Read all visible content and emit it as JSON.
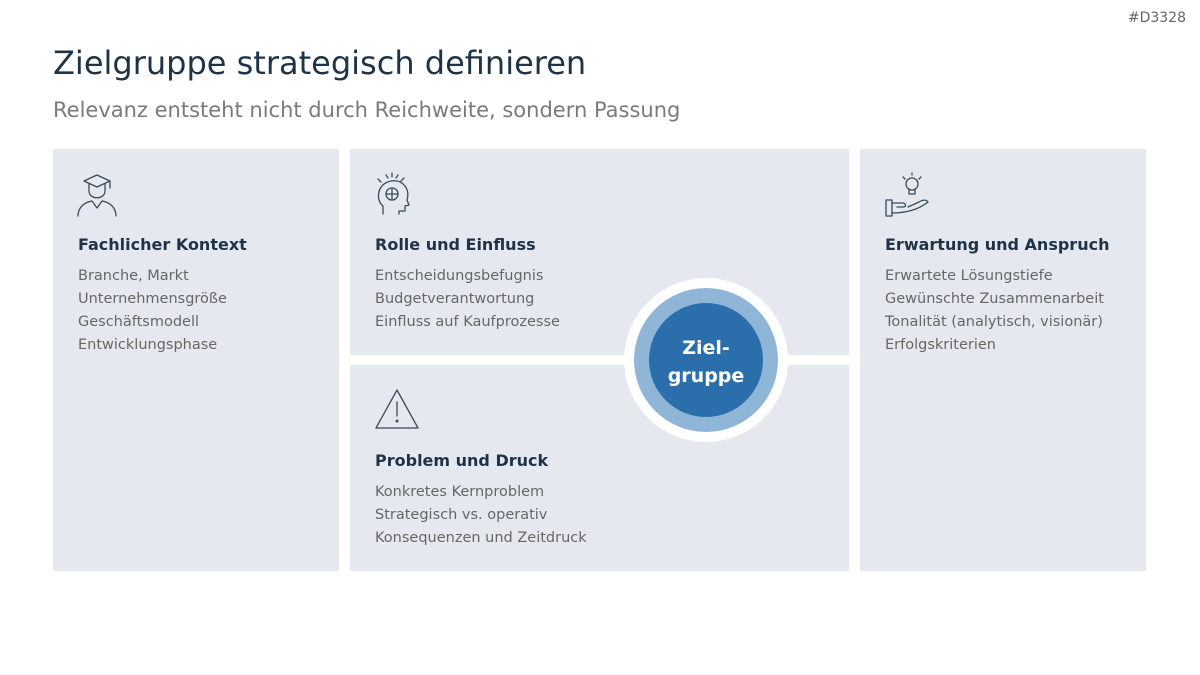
{
  "header": {
    "id": "#D3328",
    "title": "Zielgruppe strategisch definieren",
    "subtitle": "Relevanz entsteht nicht durch Reichweite, sondern Passung"
  },
  "cards": [
    {
      "title": "Fachlicher Kontext",
      "items": [
        "Branche, Markt",
        "Unternehmensgröße",
        "Geschäftsmodell",
        "Entwicklungsphase"
      ]
    },
    {
      "title": "Rolle und Einfluss",
      "items": [
        "Entscheidungsbefugnis",
        "Budgetverantwortung",
        "Einfluss auf Kaufprozesse"
      ]
    },
    {
      "title": "Problem und Druck",
      "items": [
        "Konkretes Kernproblem",
        "Strategisch vs. operativ",
        "Konsequenzen und Zeitdruck"
      ]
    },
    {
      "title": "Erwartung und Anspruch",
      "items": [
        "Erwartete Lösungstiefe",
        "Gewünschte Zusammenarbeit",
        "Tonalität (analytisch, visionär)",
        "Erfolgskriterien"
      ]
    }
  ],
  "center": {
    "lines": [
      "Ziel-",
      "gruppe"
    ]
  }
}
